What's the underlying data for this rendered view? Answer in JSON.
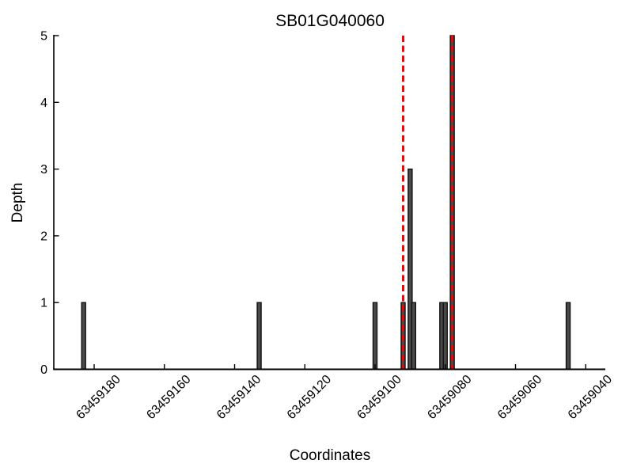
{
  "chart_data": {
    "type": "bar",
    "title": "SB01G040060",
    "xlabel": "Coordinates",
    "ylabel": "Depth",
    "x_axis": {
      "ticks": [
        63459180,
        63459160,
        63459140,
        63459120,
        63459100,
        63459080,
        63459060,
        63459040
      ],
      "tick_step": 20,
      "direction": "decreasing-to-right",
      "range_left_value": 63459191,
      "range_right_value": 63459034
    },
    "y_axis": {
      "ticks": [
        0,
        1,
        2,
        3,
        4,
        5
      ],
      "range": [
        0,
        5
      ],
      "grid": false
    },
    "bars": [
      {
        "coordinate": 63459183,
        "depth": 1
      },
      {
        "coordinate": 63459133,
        "depth": 1
      },
      {
        "coordinate": 63459100,
        "depth": 1
      },
      {
        "coordinate": 63459092,
        "depth": 1
      },
      {
        "coordinate": 63459090,
        "depth": 3
      },
      {
        "coordinate": 63459089,
        "depth": 1
      },
      {
        "coordinate": 63459081,
        "depth": 1
      },
      {
        "coordinate": 63459080,
        "depth": 1
      },
      {
        "coordinate": 63459078,
        "depth": 5
      },
      {
        "coordinate": 63459045,
        "depth": 1
      }
    ],
    "marker_lines": {
      "style": "dashed",
      "positions": [
        63459092,
        63459078
      ]
    },
    "legend": "none",
    "colors": {
      "bar_fill": "#4a4a4a",
      "bar_edge": "#111111",
      "marker_line": "#fa0000",
      "axis": "#000000",
      "background": "#ffffff"
    }
  }
}
